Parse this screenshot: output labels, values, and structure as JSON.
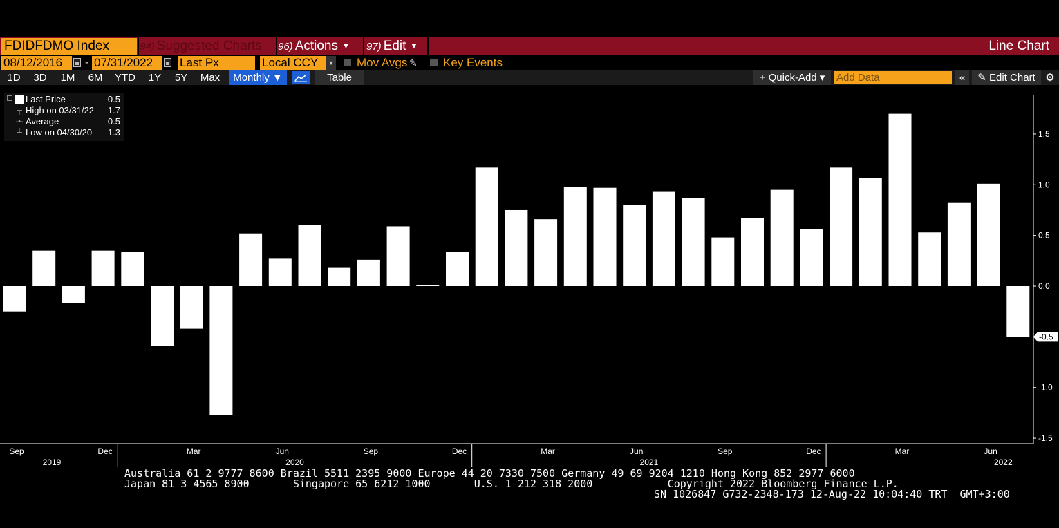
{
  "header": {
    "ticker": "FDIDFDMO Index",
    "menu": [
      {
        "num": "94)",
        "label": "Suggested Charts"
      },
      {
        "num": "96)",
        "label": "Actions"
      },
      {
        "num": "97)",
        "label": "Edit"
      }
    ],
    "chart_kind": "Line Chart"
  },
  "controls": {
    "start_date": "08/12/2016",
    "end_date": "07/31/2022",
    "date_sep": "-",
    "field": "Last Px",
    "currency": "Local CCY",
    "mov_avgs": "Mov Avgs",
    "key_events": "Key Events"
  },
  "periods": [
    "1D",
    "3D",
    "1M",
    "6M",
    "YTD",
    "1Y",
    "5Y",
    "Max"
  ],
  "frequency": "Monthly ▼",
  "table_label": "Table",
  "quick_add": "+ Quick-Add ▾",
  "add_data_placeholder": "Add Data",
  "collapse_icon": "«",
  "edit_chart": "✎ Edit Chart",
  "gear_icon": "⚙",
  "legend": {
    "rows": [
      {
        "label": "Last Price",
        "value": "-0.5"
      },
      {
        "label": "High on 03/31/22",
        "value": "1.7"
      },
      {
        "label": "Average",
        "value": "0.5"
      },
      {
        "label": "Low on 04/30/20",
        "value": "-1.3"
      }
    ]
  },
  "chart_data": {
    "type": "bar",
    "categories": [
      "2019-09",
      "2019-10",
      "2019-11",
      "2019-12",
      "2020-01",
      "2020-02",
      "2020-03",
      "2020-04",
      "2020-05",
      "2020-06",
      "2020-07",
      "2020-08",
      "2020-09",
      "2020-10",
      "2020-11",
      "2020-12",
      "2021-01",
      "2021-02",
      "2021-03",
      "2021-04",
      "2021-05",
      "2021-06",
      "2021-07",
      "2021-08",
      "2021-09",
      "2021-10",
      "2021-11",
      "2021-12",
      "2022-01",
      "2022-02",
      "2022-03",
      "2022-04",
      "2022-05",
      "2022-06",
      "2022-07"
    ],
    "values": [
      -0.25,
      0.35,
      -0.17,
      0.35,
      0.34,
      -0.59,
      -0.42,
      -1.27,
      0.52,
      0.27,
      0.6,
      0.18,
      0.26,
      0.59,
      0.01,
      0.34,
      1.17,
      0.75,
      0.66,
      0.98,
      0.97,
      0.8,
      0.93,
      0.87,
      0.48,
      0.67,
      0.95,
      0.56,
      1.17,
      1.07,
      1.7,
      0.53,
      0.82,
      1.01,
      -0.5
    ],
    "ylim": [
      -1.5,
      1.9
    ],
    "yticks": [
      "1.5",
      "1.0",
      "0.5",
      "0.0",
      "-0.5",
      "-1.0",
      "-1.5"
    ],
    "last_value_label": "-0.5",
    "x_month_labels": [
      "Sep",
      "Dec",
      "Mar",
      "Jun",
      "Sep",
      "Dec",
      "Mar",
      "Jun",
      "Sep",
      "Dec",
      "Mar",
      "Jun"
    ],
    "x_year_labels": [
      "2019",
      "2020",
      "2021",
      "2022"
    ],
    "bar_color": "#ffffff",
    "grid": false
  },
  "footer": {
    "line1": "Australia 61 2 9777 8600 Brazil 5511 2395 9000 Europe 44 20 7330 7500 Germany 49 69 9204 1210 Hong Kong 852 2977 6000",
    "line2": "Japan 81 3 4565 8900       Singapore 65 6212 1000       U.S. 1 212 318 2000            Copyright 2022 Bloomberg Finance L.P.",
    "line3": "SN 1026847 G732-2348-173 12-Aug-22 10:04:40 TRT  GMT+3:00"
  },
  "colors": {
    "titlebar": "#8a0f22",
    "orange": "#f7a21b",
    "active_blue": "#1d5fd6"
  }
}
